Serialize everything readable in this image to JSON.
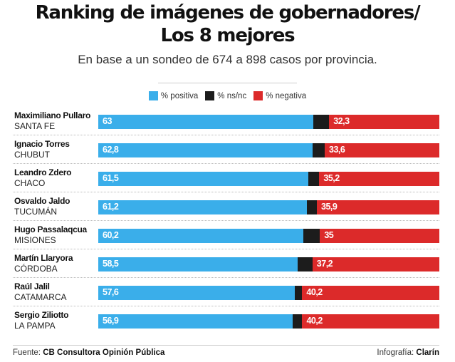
{
  "chart_data": {
    "type": "bar",
    "stacked": true,
    "orientation": "horizontal",
    "title": "Ranking de imágenes de gobernadores/ Los 8 mejores",
    "title_lines": [
      "Ranking de imágenes de gobernadores/",
      "Los 8 mejores"
    ],
    "subtitle": "En base a un sondeo de 674 a 898 casos por provincia.",
    "legend_position": "top-center",
    "series": [
      {
        "name": "% positiva",
        "color": "#3aaeea",
        "values": [
          63,
          62.8,
          61.5,
          61.2,
          60.2,
          58.5,
          57.6,
          56.9
        ],
        "labels": [
          "63",
          "62,8",
          "61,5",
          "61,2",
          "60,2",
          "58,5",
          "57,6",
          "56,9"
        ]
      },
      {
        "name": "% ns/nc",
        "color": "#1c1c1c",
        "values": [
          4.7,
          3.6,
          3.3,
          2.9,
          4.8,
          4.3,
          2.2,
          2.9
        ],
        "labels": [
          "",
          "",
          "",
          "",
          "",
          "",
          "",
          ""
        ]
      },
      {
        "name": "% negativa",
        "color": "#dc2a2a",
        "values": [
          32.3,
          33.6,
          35.2,
          35.9,
          35,
          37.2,
          40.2,
          40.2
        ],
        "labels": [
          "32,3",
          "33,6",
          "35,2",
          "35,9",
          "35",
          "37,2",
          "40,2",
          "40,2"
        ]
      }
    ],
    "categories": [
      {
        "name": "Maximiliano Pullaro",
        "province": "SANTA FE"
      },
      {
        "name": "Ignacio Torres",
        "province": "CHUBUT"
      },
      {
        "name": "Leandro Zdero",
        "province": "CHACO"
      },
      {
        "name": "Osvaldo Jaldo",
        "province": "TUCUMÁN"
      },
      {
        "name": "Hugo Passalaqcua",
        "province": "MISIONES"
      },
      {
        "name": "Martín Llaryora",
        "province": "CÓRDOBA"
      },
      {
        "name": "Raúl Jalil",
        "province": "CATAMARCA"
      },
      {
        "name": "Sergio Ziliotto",
        "province": "LA PAMPA"
      }
    ],
    "xlim": [
      0,
      100
    ]
  },
  "footer": {
    "source_label": "Fuente: ",
    "source_value": "CB Consultora Opinión Pública",
    "credit_label": "Infografía: ",
    "credit_value": "Clarín"
  }
}
